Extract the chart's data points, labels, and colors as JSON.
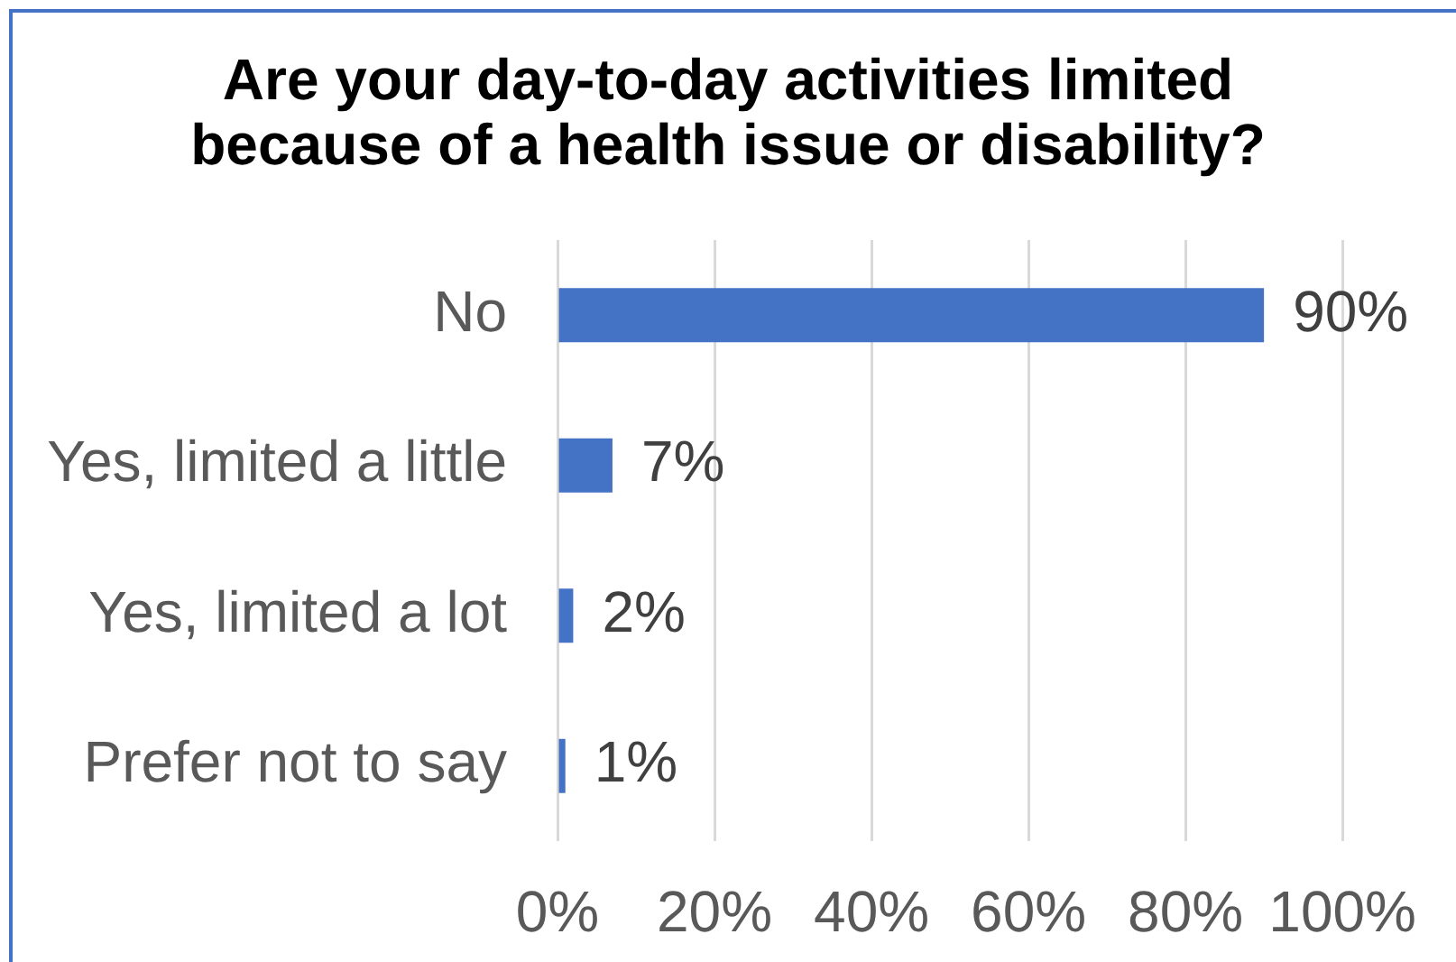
{
  "chart_data": {
    "type": "bar",
    "orientation": "horizontal",
    "title": "Are your day-to-day activities limited because of a health issue or disability?",
    "categories": [
      "No",
      "Yes, limited a little",
      "Yes, limited a lot",
      "Prefer not to say"
    ],
    "values": [
      90,
      7,
      2,
      1
    ],
    "value_labels": [
      "90%",
      "7%",
      "2%",
      "1%"
    ],
    "color": "#4472c4",
    "xlim": [
      0,
      100
    ],
    "xticks": [
      {
        "value": 0,
        "label": "0%"
      },
      {
        "value": 20,
        "label": "20%"
      },
      {
        "value": 40,
        "label": "40%"
      },
      {
        "value": 60,
        "label": "60%"
      },
      {
        "value": 80,
        "label": "80%"
      },
      {
        "value": 100,
        "label": "100%"
      }
    ],
    "grid": "x"
  }
}
